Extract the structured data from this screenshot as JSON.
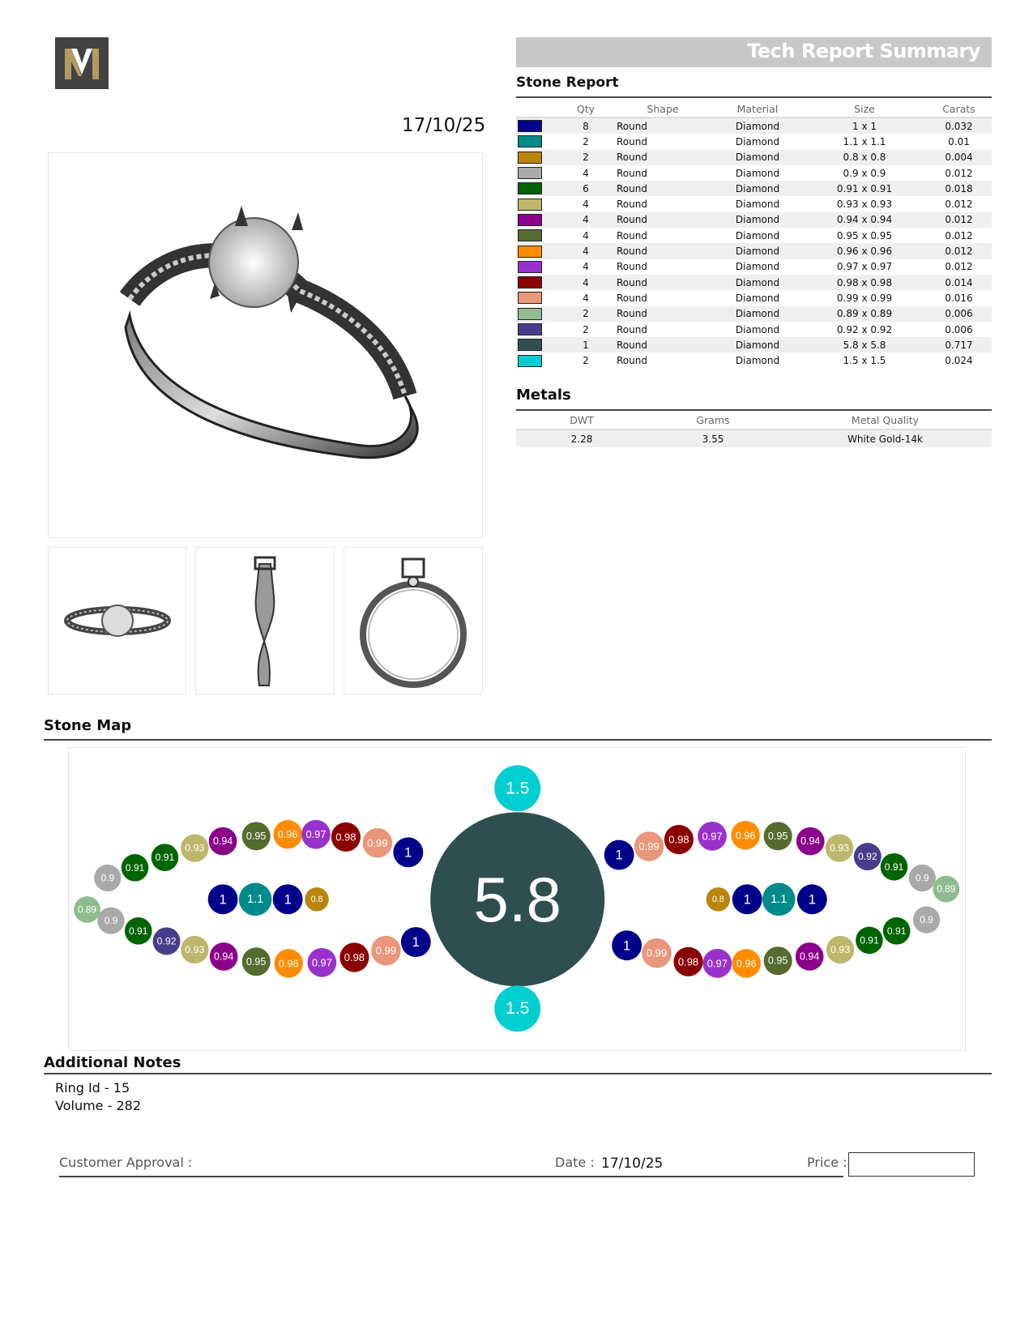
{
  "header": {
    "title": "Tech Report Summary",
    "logo_letter": "M",
    "date": "17/10/25"
  },
  "stone_report": {
    "title": "Stone Report",
    "columns": [
      "Qty",
      "Shape",
      "Material",
      "Size",
      "Carats"
    ],
    "rows": [
      {
        "color": "#00008b",
        "qty": "8",
        "shape": "Round",
        "material": "Diamond",
        "size": "1 x 1",
        "carats": "0.032"
      },
      {
        "color": "#008b8b",
        "qty": "2",
        "shape": "Round",
        "material": "Diamond",
        "size": "1.1 x 1.1",
        "carats": "0.01"
      },
      {
        "color": "#b8860b",
        "qty": "2",
        "shape": "Round",
        "material": "Diamond",
        "size": "0.8 x 0.8",
        "carats": "0.004"
      },
      {
        "color": "#a9a9a9",
        "qty": "4",
        "shape": "Round",
        "material": "Diamond",
        "size": "0.9 x 0.9",
        "carats": "0.012"
      },
      {
        "color": "#006400",
        "qty": "6",
        "shape": "Round",
        "material": "Diamond",
        "size": "0.91 x 0.91",
        "carats": "0.018"
      },
      {
        "color": "#bdb76b",
        "qty": "4",
        "shape": "Round",
        "material": "Diamond",
        "size": "0.93 x 0.93",
        "carats": "0.012"
      },
      {
        "color": "#8b008b",
        "qty": "4",
        "shape": "Round",
        "material": "Diamond",
        "size": "0.94 x 0.94",
        "carats": "0.012"
      },
      {
        "color": "#556b2f",
        "qty": "4",
        "shape": "Round",
        "material": "Diamond",
        "size": "0.95 x 0.95",
        "carats": "0.012"
      },
      {
        "color": "#ff8c00",
        "qty": "4",
        "shape": "Round",
        "material": "Diamond",
        "size": "0.96 x 0.96",
        "carats": "0.012"
      },
      {
        "color": "#9932cc",
        "qty": "4",
        "shape": "Round",
        "material": "Diamond",
        "size": "0.97 x 0.97",
        "carats": "0.012"
      },
      {
        "color": "#8b0000",
        "qty": "4",
        "shape": "Round",
        "material": "Diamond",
        "size": "0.98 x 0.98",
        "carats": "0.014"
      },
      {
        "color": "#e9967a",
        "qty": "4",
        "shape": "Round",
        "material": "Diamond",
        "size": "0.99 x 0.99",
        "carats": "0.016"
      },
      {
        "color": "#8fbc8f",
        "qty": "2",
        "shape": "Round",
        "material": "Diamond",
        "size": "0.89 x 0.89",
        "carats": "0.006"
      },
      {
        "color": "#483d8b",
        "qty": "2",
        "shape": "Round",
        "material": "Diamond",
        "size": "0.92 x 0.92",
        "carats": "0.006"
      },
      {
        "color": "#2f4f4f",
        "qty": "1",
        "shape": "Round",
        "material": "Diamond",
        "size": "5.8 x 5.8",
        "carats": "0.717"
      },
      {
        "color": "#00ced1",
        "qty": "2",
        "shape": "Round",
        "material": "Diamond",
        "size": "1.5 x 1.5",
        "carats": "0.024"
      }
    ]
  },
  "metals": {
    "title": "Metals",
    "columns": [
      "DWT",
      "Grams",
      "Metal Quality"
    ],
    "row": {
      "dwt": "2.28",
      "grams": "3.55",
      "quality": "White Gold-14k"
    }
  },
  "stone_map": {
    "title": "Stone Map",
    "colors": {
      "1": "#00008b",
      "1.1": "#008b8b",
      "0.8": "#b8860b",
      "0.9": "#a9a9a9",
      "0.91": "#006400",
      "0.93": "#bdb76b",
      "0.94": "#8b008b",
      "0.95": "#556b2f",
      "0.96": "#ff8c00",
      "0.97": "#9932cc",
      "0.98": "#8b0000",
      "0.99": "#e9967a",
      "0.89": "#8fbc8f",
      "0.92": "#483d8b",
      "5.8": "#2f4f4f",
      "1.5": "#00ced1"
    },
    "stones": [
      "5.8",
      "1.5",
      "1.5",
      "0.9",
      "0.91",
      "0.91",
      "0.93",
      "0.94",
      "0.95",
      "0.96",
      "0.97",
      "0.98",
      "0.99",
      "1",
      "0.89",
      "0.9",
      "0.91",
      "0.92",
      "0.93",
      "0.94",
      "0.95",
      "0.96",
      "0.97",
      "0.98",
      "0.99",
      "1",
      "1",
      "1.1",
      "1",
      "0.8",
      "1",
      "0.99",
      "0.98",
      "0.97",
      "0.96",
      "0.95",
      "0.94",
      "0.93",
      "0.92",
      "0.91",
      "0.9",
      "0.89",
      "1",
      "0.99",
      "0.98",
      "0.97",
      "0.96",
      "0.95",
      "0.94",
      "0.93",
      "0.91",
      "0.91",
      "0.9",
      "0.8",
      "1",
      "1.1",
      "1"
    ]
  },
  "notes": {
    "title": "Additional Notes",
    "lines": [
      "Ring Id - 15",
      "Volume - 282"
    ]
  },
  "approval": {
    "customer_label": "Customer Approval :",
    "date_label": "Date :",
    "date_value": "17/10/25",
    "price_label": "Price :",
    "price_value": ""
  }
}
